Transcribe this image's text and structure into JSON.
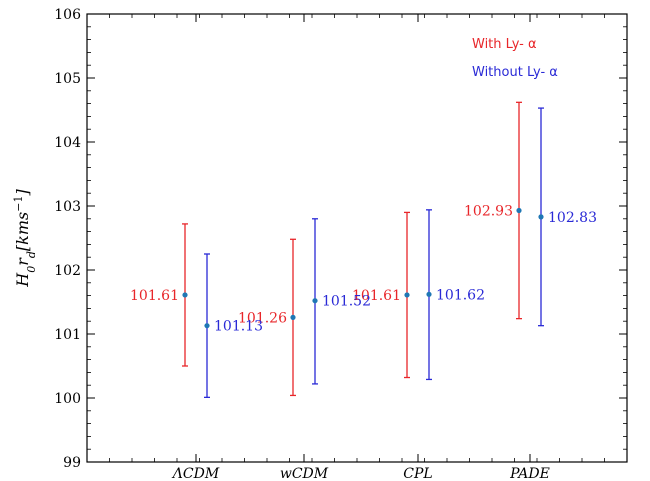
{
  "chart_data": {
    "type": "errorbar",
    "categories": [
      "ΛCDM",
      "wCDM",
      "CPL",
      "PADE"
    ],
    "ylabel": "H₀r_d[kms⁻¹]",
    "ylabel_parts": {
      "main": "H",
      "sub1": "0",
      "mid": "r",
      "sub2": "d",
      "unit": "[kms",
      "sup": "−1",
      "close": "]"
    },
    "ylim": [
      99,
      106
    ],
    "yticks": [
      "99",
      "100",
      "101",
      "102",
      "103",
      "104",
      "105",
      "106"
    ],
    "legend_placement": "top-right",
    "series": [
      {
        "name": "With Ly- α",
        "color": "#e8262a",
        "values": [
          101.61,
          101.26,
          101.61,
          102.93
        ],
        "labels": [
          "101.61",
          "101.26",
          "101.61",
          "102.93"
        ],
        "lower": [
          100.5,
          100.04,
          100.32,
          101.24
        ],
        "upper": [
          102.72,
          102.48,
          102.9,
          104.62
        ]
      },
      {
        "name": "Without Ly- α",
        "color": "#2a2ad6",
        "values": [
          101.13,
          101.52,
          101.62,
          102.83
        ],
        "labels": [
          "101.13",
          "101.52",
          "101.62",
          "102.83"
        ],
        "lower": [
          100.01,
          100.22,
          100.29,
          101.13
        ],
        "upper": [
          102.25,
          102.8,
          102.94,
          104.53
        ]
      }
    ],
    "marker_color": "#1f77b4"
  }
}
